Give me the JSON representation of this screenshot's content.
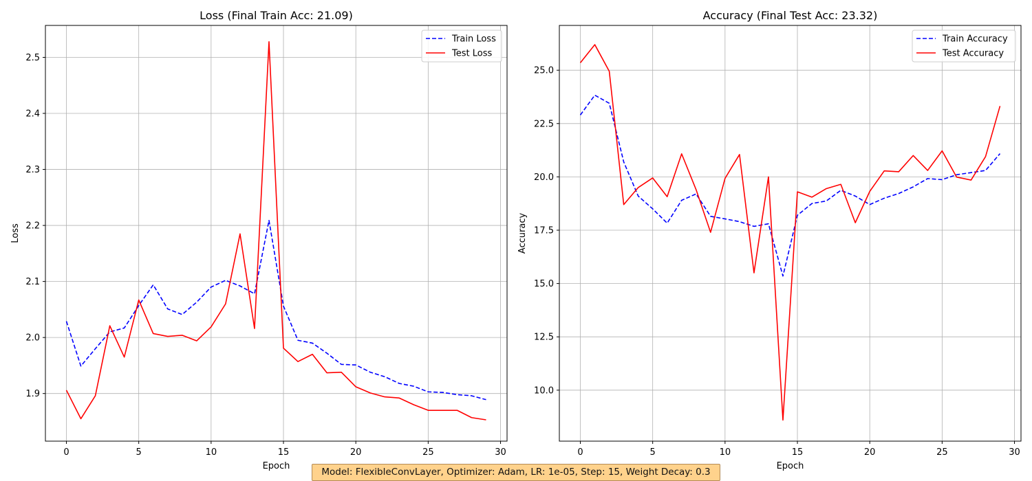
{
  "chart_data": [
    {
      "type": "line",
      "title": "Loss (Final Train Acc: 21.09)",
      "xlabel": "Epoch",
      "ylabel": "Loss",
      "xlim": [
        -1.45,
        30.45
      ],
      "ylim": [
        1.815,
        2.557
      ],
      "xticks": [
        0,
        5,
        10,
        15,
        20,
        25,
        30
      ],
      "yticks": [
        1.9,
        2.0,
        2.1,
        2.2,
        2.3,
        2.4,
        2.5
      ],
      "ytick_labels": [
        "1.9",
        "2.0",
        "2.1",
        "2.2",
        "2.3",
        "2.4",
        "2.5"
      ],
      "grid": true,
      "legend_position": "top-right",
      "x": [
        0,
        1,
        2,
        3,
        4,
        5,
        6,
        7,
        8,
        9,
        10,
        11,
        12,
        13,
        14,
        15,
        16,
        17,
        18,
        19,
        20,
        21,
        22,
        23,
        24,
        25,
        26,
        27,
        28,
        29
      ],
      "series": [
        {
          "name": "Train Loss",
          "color": "#0000ff",
          "style": "dashed",
          "values": [
            2.029,
            1.949,
            1.98,
            2.01,
            2.017,
            2.057,
            2.094,
            2.051,
            2.041,
            2.063,
            2.09,
            2.102,
            2.092,
            2.078,
            2.209,
            2.056,
            1.995,
            1.99,
            1.972,
            1.952,
            1.951,
            1.938,
            1.93,
            1.918,
            1.913,
            1.903,
            1.902,
            1.898,
            1.896,
            1.889
          ]
        },
        {
          "name": "Test Loss",
          "color": "#ff0000",
          "style": "solid",
          "values": [
            1.906,
            1.855,
            1.896,
            2.021,
            1.965,
            2.067,
            2.007,
            2.002,
            2.004,
            1.994,
            2.019,
            2.06,
            2.185,
            2.016,
            2.528,
            1.981,
            1.957,
            1.97,
            1.937,
            1.938,
            1.912,
            1.901,
            1.894,
            1.892,
            1.88,
            1.87,
            1.87,
            1.87,
            1.857,
            1.853
          ]
        }
      ]
    },
    {
      "type": "line",
      "title": "Accuracy (Final Test Acc: 23.32)",
      "xlabel": "Epoch",
      "ylabel": "Accuracy",
      "xlim": [
        -1.45,
        30.45
      ],
      "ylim": [
        7.61,
        27.1
      ],
      "xticks": [
        0,
        5,
        10,
        15,
        20,
        25,
        30
      ],
      "yticks": [
        10,
        12.5,
        15,
        17.5,
        20,
        22.5,
        25
      ],
      "ytick_labels": [
        "10.0",
        "12.5",
        "15.0",
        "17.5",
        "20.0",
        "22.5",
        "25.0"
      ],
      "grid": true,
      "legend_position": "top-right",
      "x": [
        0,
        1,
        2,
        3,
        4,
        5,
        6,
        7,
        8,
        9,
        10,
        11,
        12,
        13,
        14,
        15,
        16,
        17,
        18,
        19,
        20,
        21,
        22,
        23,
        24,
        25,
        26,
        27,
        28,
        29
      ],
      "series": [
        {
          "name": "Train Accuracy",
          "color": "#0000ff",
          "style": "dashed",
          "values": [
            22.9,
            23.83,
            23.45,
            20.7,
            19.1,
            18.5,
            17.83,
            18.9,
            19.2,
            18.15,
            18.03,
            17.9,
            17.68,
            17.8,
            15.35,
            18.2,
            18.75,
            18.87,
            19.37,
            19.1,
            18.7,
            19.0,
            19.22,
            19.53,
            19.92,
            19.87,
            20.1,
            20.2,
            20.3,
            21.09
          ]
        },
        {
          "name": "Test Accuracy",
          "color": "#ff0000",
          "style": "solid",
          "values": [
            25.35,
            26.2,
            24.95,
            18.7,
            19.5,
            19.95,
            19.07,
            21.08,
            19.4,
            17.4,
            19.93,
            21.05,
            15.5,
            20.0,
            8.6,
            19.3,
            19.05,
            19.45,
            19.65,
            17.85,
            19.32,
            20.28,
            20.24,
            21.0,
            20.3,
            21.22,
            19.99,
            19.85,
            20.95,
            23.32
          ]
        }
      ]
    }
  ],
  "footer": {
    "text": "Model: FlexibleConvLayer, Optimizer: Adam, LR: 1e-05, Step: 15, Weight Decay: 0.3"
  }
}
